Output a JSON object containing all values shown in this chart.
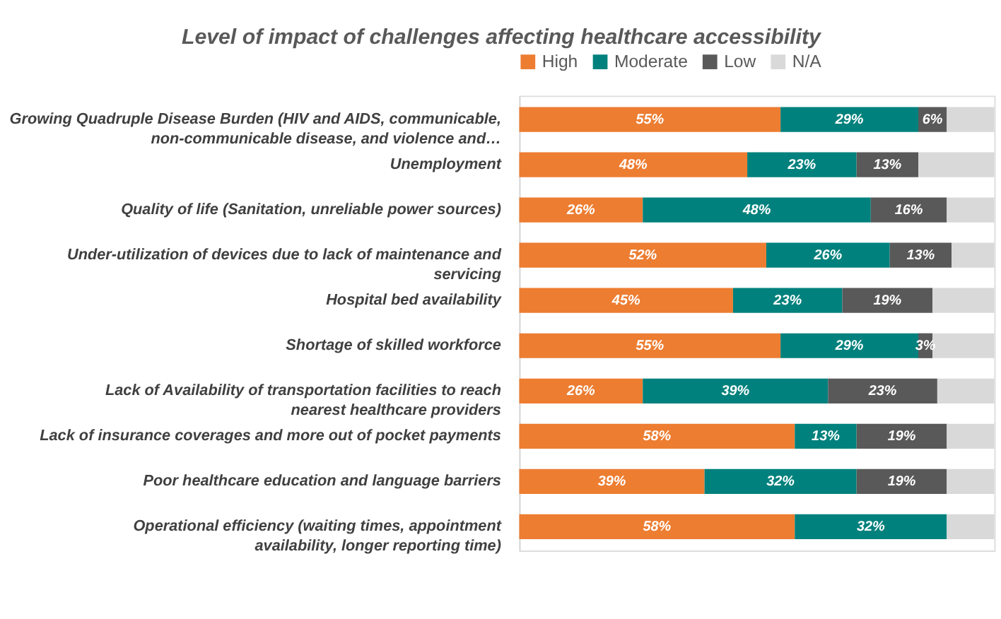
{
  "chart_data": {
    "type": "bar",
    "orientation": "horizontal",
    "stacked": true,
    "title": "Level of impact of challenges affecting healthcare accessibility",
    "categories": [
      "Growing Quadruple Disease Burden (HIV and AIDS, communicable, non-communicable disease, and violence and…",
      "Unemployment",
      "Quality of life (Sanitation, unreliable power sources)",
      "Under-utilization of devices due to lack of maintenance and servicing",
      "Hospital bed availability",
      "Shortage of skilled workforce",
      "Lack of Availability of transportation facilities to reach nearest healthcare providers",
      "Lack of insurance coverages and more out of pocket payments",
      "Poor healthcare education and language barriers",
      "Operational efficiency (waiting times, appointment availability, longer reporting time)"
    ],
    "series": [
      {
        "name": "High",
        "color": "#ed7d31",
        "values": [
          55,
          48,
          26,
          52,
          45,
          55,
          26,
          58,
          39,
          58
        ],
        "value_labels": [
          "55%",
          "48%",
          "26%",
          "52%",
          "45%",
          "55%",
          "26%",
          "58%",
          "39%",
          "58%"
        ]
      },
      {
        "name": "Moderate",
        "color": "#00817d",
        "values": [
          29,
          23,
          48,
          26,
          23,
          29,
          39,
          13,
          32,
          32
        ],
        "value_labels": [
          "29%",
          "23%",
          "48%",
          "26%",
          "23%",
          "29%",
          "39%",
          "13%",
          "32%",
          "32%"
        ]
      },
      {
        "name": "Low",
        "color": "#595959",
        "values": [
          6,
          13,
          16,
          13,
          19,
          3,
          23,
          19,
          19,
          null
        ],
        "value_labels": [
          "6%",
          "13%",
          "16%",
          "13%",
          "19%",
          "3%",
          "23%",
          "19%",
          "19%",
          null
        ]
      },
      {
        "name": "N/A",
        "color": "#d9d9d9",
        "values": [
          10,
          16,
          10,
          9,
          13,
          13,
          12,
          10,
          10,
          10
        ]
      }
    ],
    "xlim": [
      0,
      100
    ],
    "tick_labels": "y",
    "legend": "top"
  }
}
